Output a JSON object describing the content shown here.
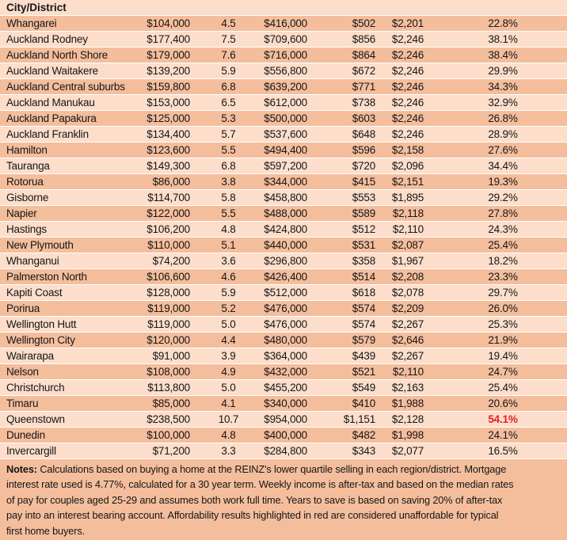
{
  "colors": {
    "row_dark": "#f4be9d",
    "row_light": "#fcdecb",
    "separator": "#ffffff",
    "text": "#161616",
    "highlight_red": "#ed1c24"
  },
  "table": {
    "visible_header": "City/District"
  },
  "notes": {
    "label": "Notes:",
    "body": "Calculations based on buying a home at the REINZ's lower quartile selling in each region/district. Mortgage\ninterest rate used is 4.77%, calculated for a 30 year term. Weekly income is after-tax and based on the median rates\nof pay for couples aged 25-29 and assumes both work full time. Years to save is based on saving 20% of after-tax\npay into an interest bearing account. Affordability results highlighted in red are considered unaffordable for typical\nfirst home buyers."
  },
  "chart_data": {
    "type": "table",
    "visible_header": "City/District",
    "row_striping": [
      "dark",
      "light"
    ],
    "highlight_note": "Queenstown percent cell is bold red",
    "rows": [
      {
        "city": "Whangarei",
        "deposit": "$104,000",
        "years": "4.5",
        "price": "$416,000",
        "weekly": "$502",
        "income": "$2,201",
        "percent": "22.8%",
        "highlight": false
      },
      {
        "city": "Auckland Rodney",
        "deposit": "$177,400",
        "years": "7.5",
        "price": "$709,600",
        "weekly": "$856",
        "income": "$2,246",
        "percent": "38.1%",
        "highlight": false
      },
      {
        "city": "Auckland North Shore",
        "deposit": "$179,000",
        "years": "7.6",
        "price": "$716,000",
        "weekly": "$864",
        "income": "$2,246",
        "percent": "38.4%",
        "highlight": false
      },
      {
        "city": "Auckland Waitakere",
        "deposit": "$139,200",
        "years": "5.9",
        "price": "$556,800",
        "weekly": "$672",
        "income": "$2,246",
        "percent": "29.9%",
        "highlight": false
      },
      {
        "city": "Auckland Central suburbs",
        "deposit": "$159,800",
        "years": "6.8",
        "price": "$639,200",
        "weekly": "$771",
        "income": "$2,246",
        "percent": "34.3%",
        "highlight": false
      },
      {
        "city": "Auckland Manukau",
        "deposit": "$153,000",
        "years": "6.5",
        "price": "$612,000",
        "weekly": "$738",
        "income": "$2,246",
        "percent": "32.9%",
        "highlight": false
      },
      {
        "city": "Auckland Papakura",
        "deposit": "$125,000",
        "years": "5.3",
        "price": "$500,000",
        "weekly": "$603",
        "income": "$2,246",
        "percent": "26.8%",
        "highlight": false
      },
      {
        "city": "Auckland Franklin",
        "deposit": "$134,400",
        "years": "5.7",
        "price": "$537,600",
        "weekly": "$648",
        "income": "$2,246",
        "percent": "28.9%",
        "highlight": false
      },
      {
        "city": "Hamilton",
        "deposit": "$123,600",
        "years": "5.5",
        "price": "$494,400",
        "weekly": "$596",
        "income": "$2,158",
        "percent": "27.6%",
        "highlight": false
      },
      {
        "city": "Tauranga",
        "deposit": "$149,300",
        "years": "6.8",
        "price": "$597,200",
        "weekly": "$720",
        "income": "$2,096",
        "percent": "34.4%",
        "highlight": false
      },
      {
        "city": "Rotorua",
        "deposit": "$86,000",
        "years": "3.8",
        "price": "$344,000",
        "weekly": "$415",
        "income": "$2,151",
        "percent": "19.3%",
        "highlight": false
      },
      {
        "city": "Gisborne",
        "deposit": "$114,700",
        "years": "5.8",
        "price": "$458,800",
        "weekly": "$553",
        "income": "$1,895",
        "percent": "29.2%",
        "highlight": false
      },
      {
        "city": "Napier",
        "deposit": "$122,000",
        "years": "5.5",
        "price": "$488,000",
        "weekly": "$589",
        "income": "$2,118",
        "percent": "27.8%",
        "highlight": false
      },
      {
        "city": "Hastings",
        "deposit": "$106,200",
        "years": "4.8",
        "price": "$424,800",
        "weekly": "$512",
        "income": "$2,110",
        "percent": "24.3%",
        "highlight": false
      },
      {
        "city": "New Plymouth",
        "deposit": "$110,000",
        "years": "5.1",
        "price": "$440,000",
        "weekly": "$531",
        "income": "$2,087",
        "percent": "25.4%",
        "highlight": false
      },
      {
        "city": "Whanganui",
        "deposit": "$74,200",
        "years": "3.6",
        "price": "$296,800",
        "weekly": "$358",
        "income": "$1,967",
        "percent": "18.2%",
        "highlight": false
      },
      {
        "city": "Palmerston North",
        "deposit": "$106,600",
        "years": "4.6",
        "price": "$426,400",
        "weekly": "$514",
        "income": "$2,208",
        "percent": "23.3%",
        "highlight": false
      },
      {
        "city": "Kapiti Coast",
        "deposit": "$128,000",
        "years": "5.9",
        "price": "$512,000",
        "weekly": "$618",
        "income": "$2,078",
        "percent": "29.7%",
        "highlight": false
      },
      {
        "city": "Porirua",
        "deposit": "$119,000",
        "years": "5.2",
        "price": "$476,000",
        "weekly": "$574",
        "income": "$2,209",
        "percent": "26.0%",
        "highlight": false
      },
      {
        "city": "Wellington Hutt",
        "deposit": "$119,000",
        "years": "5.0",
        "price": "$476,000",
        "weekly": "$574",
        "income": "$2,267",
        "percent": "25.3%",
        "highlight": false
      },
      {
        "city": "Wellington City",
        "deposit": "$120,000",
        "years": "4.4",
        "price": "$480,000",
        "weekly": "$579",
        "income": "$2,646",
        "percent": "21.9%",
        "highlight": false
      },
      {
        "city": "Wairarapa",
        "deposit": "$91,000",
        "years": "3.9",
        "price": "$364,000",
        "weekly": "$439",
        "income": "$2,267",
        "percent": "19.4%",
        "highlight": false
      },
      {
        "city": "Nelson",
        "deposit": "$108,000",
        "years": "4.9",
        "price": "$432,000",
        "weekly": "$521",
        "income": "$2,110",
        "percent": "24.7%",
        "highlight": false
      },
      {
        "city": "Christchurch",
        "deposit": "$113,800",
        "years": "5.0",
        "price": "$455,200",
        "weekly": "$549",
        "income": "$2,163",
        "percent": "25.4%",
        "highlight": false
      },
      {
        "city": "Timaru",
        "deposit": "$85,000",
        "years": "4.1",
        "price": "$340,000",
        "weekly": "$410",
        "income": "$1,988",
        "percent": "20.6%",
        "highlight": false
      },
      {
        "city": "Queenstown",
        "deposit": "$238,500",
        "years": "10.7",
        "price": "$954,000",
        "weekly": "$1,151",
        "income": "$2,128",
        "percent": "54.1%",
        "highlight": true
      },
      {
        "city": "Dunedin",
        "deposit": "$100,000",
        "years": "4.8",
        "price": "$400,000",
        "weekly": "$482",
        "income": "$1,998",
        "percent": "24.1%",
        "highlight": false
      },
      {
        "city": "Invercargill",
        "deposit": "$71,200",
        "years": "3.3",
        "price": "$284,800",
        "weekly": "$343",
        "income": "$2,077",
        "percent": "16.5%",
        "highlight": false
      }
    ]
  }
}
